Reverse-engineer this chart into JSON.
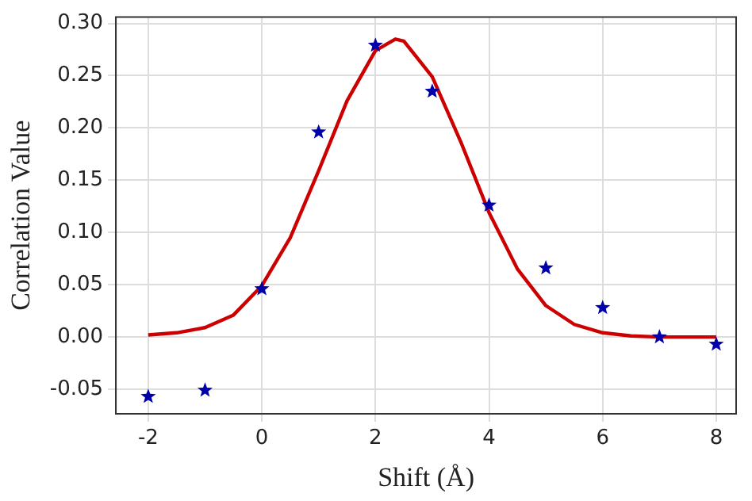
{
  "chart_data": {
    "type": "scatter",
    "xlabel": "Shift (Å)",
    "ylabel": "Correlation Value",
    "xlim": [
      -2.57,
      8.35
    ],
    "ylim": [
      -0.0735,
      0.306
    ],
    "xticks": [
      -2,
      0,
      2,
      4,
      6,
      8
    ],
    "yticks": [
      {
        "value": -0.05,
        "label": "-0.05"
      },
      {
        "value": 0,
        "label": "0.00"
      },
      {
        "value": 0.05,
        "label": "0.05"
      },
      {
        "value": 0.1,
        "label": "0.10"
      },
      {
        "value": 0.15,
        "label": "0.15"
      },
      {
        "value": 0.2,
        "label": "0.20"
      },
      {
        "value": 0.25,
        "label": "0.25"
      },
      {
        "value": 0.3,
        "label": "0.30"
      }
    ],
    "grid": true,
    "legend": false,
    "marker": "star",
    "series": [
      {
        "color": "#0000aa",
        "x": [
          -2,
          -1,
          0,
          1,
          2,
          3,
          4,
          5,
          6,
          7,
          8
        ],
        "values": [
          -0.057,
          -0.051,
          0.046,
          0.196,
          0.279,
          0.235,
          0.126,
          0.066,
          0.028,
          0.0,
          -0.007
        ]
      },
      {
        "type": "line",
        "color": "#cc0000",
        "marker": "none",
        "line_style": "solid",
        "x": [
          -2,
          -1.5,
          -1,
          -0.5,
          0,
          0.5,
          1,
          1.5,
          2,
          2.35,
          2.5,
          3,
          3.5,
          4,
          4.5,
          5,
          5.5,
          6,
          6.5,
          7,
          7.5,
          8
        ],
        "values": [
          0.002,
          0.004,
          0.009,
          0.021,
          0.049,
          0.095,
          0.159,
          0.226,
          0.274,
          0.285,
          0.283,
          0.249,
          0.187,
          0.119,
          0.065,
          0.03,
          0.012,
          0.004,
          0.001,
          0.0,
          0.0,
          0.0
        ]
      }
    ]
  }
}
